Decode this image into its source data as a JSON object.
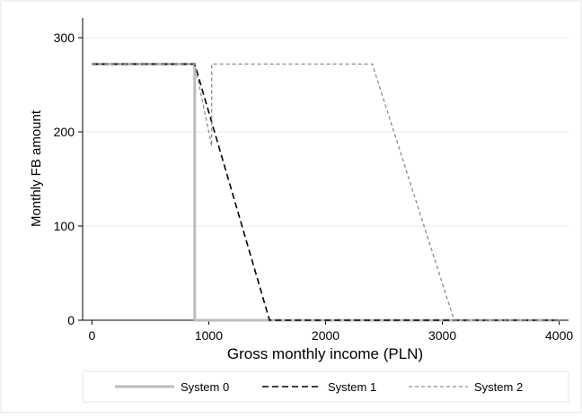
{
  "chart_data": {
    "type": "line",
    "title": "",
    "xlabel": "Gross monthly income (PLN)",
    "ylabel": "Monthly FB amount",
    "xlim": [
      -80,
      4080
    ],
    "ylim": [
      0,
      300
    ],
    "x_ticks": [
      0,
      1000,
      2000,
      3000,
      4000
    ],
    "y_ticks": [
      0,
      100,
      200,
      300
    ],
    "grid": "horizontal",
    "legend": "bottom",
    "series": [
      {
        "name": "System 0",
        "color": "#bdbdbd",
        "style": "solid",
        "x": [
          0,
          880,
          880,
          4000
        ],
        "y": [
          272,
          272,
          0,
          0
        ]
      },
      {
        "name": "System 1",
        "color": "#000000",
        "style": "dashed",
        "x": [
          0,
          880,
          1520,
          4000
        ],
        "y": [
          272,
          272,
          0,
          0
        ]
      },
      {
        "name": "System 2",
        "color": "#8c8c8c",
        "style": "dotted-dash",
        "x": [
          0,
          880,
          1025,
          1025,
          2400,
          3100,
          4000
        ],
        "y": [
          272,
          272,
          185,
          272,
          272,
          0,
          0
        ]
      }
    ]
  }
}
